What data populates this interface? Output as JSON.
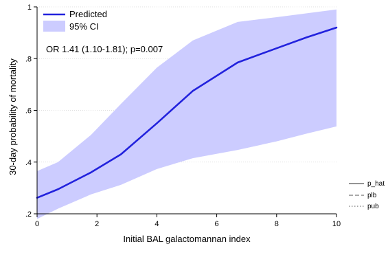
{
  "chart_data": {
    "type": "line",
    "xlabel": "Initial BAL galactomannan index",
    "ylabel": "30-day probability of mortality",
    "xlim": [
      0,
      10
    ],
    "ylim": [
      0.2,
      1.0
    ],
    "x_ticks": [
      0,
      2,
      4,
      6,
      8,
      10
    ],
    "x_tick_labels": [
      "0",
      "2",
      "4",
      "6",
      "8",
      "10"
    ],
    "y_ticks": [
      0.2,
      0.4,
      0.6,
      0.8,
      1.0
    ],
    "y_tick_labels": [
      ".2",
      ".4",
      ".6",
      ".8",
      "1"
    ],
    "grid": "horizontal-dotted",
    "series": [
      {
        "name": "Predicted",
        "color": "#2222dd",
        "x": [
          0,
          0.7,
          1.8,
          2.8,
          4.0,
          5.2,
          6.7,
          8.0,
          9.0,
          10.0
        ],
        "y": [
          0.262,
          0.295,
          0.36,
          0.43,
          0.55,
          0.675,
          0.785,
          0.84,
          0.882,
          0.92
        ]
      }
    ],
    "band": {
      "name": "95% CI",
      "color": "#ccccff",
      "x": [
        0,
        0.7,
        1.8,
        2.8,
        4.0,
        5.2,
        6.7,
        8.0,
        9.0,
        10.0
      ],
      "upper": [
        0.365,
        0.4,
        0.505,
        0.625,
        0.765,
        0.87,
        0.942,
        0.96,
        0.975,
        0.99
      ],
      "lower": [
        0.18,
        0.22,
        0.275,
        0.312,
        0.373,
        0.415,
        0.447,
        0.48,
        0.51,
        0.538
      ]
    },
    "legend": {
      "placement": "top-left",
      "entries": [
        "Predicted",
        "95% CI"
      ]
    },
    "annotation": "OR 1.41 (1.10-1.81); p=0.007",
    "side_legend": {
      "placement": "bottom-right",
      "entries": [
        "p_hat",
        "plb",
        "pub"
      ]
    }
  }
}
